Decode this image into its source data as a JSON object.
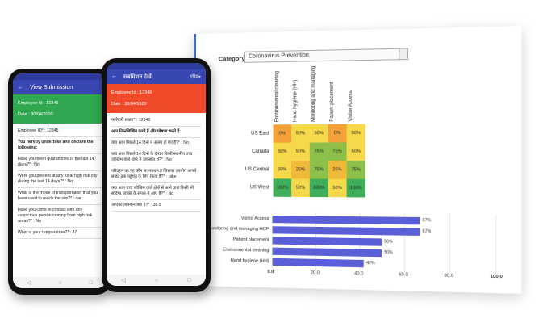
{
  "dashboard": {
    "category_label": "Category",
    "category_value": "Coronavirus Prevention",
    "heatmap": {
      "columns": [
        "Environmental cleaning",
        "Hand hygiene (HH)",
        "Monitoring and managing",
        "Patient placement",
        "Visitor Access"
      ],
      "rows": [
        {
          "label": "US East",
          "values": [
            "0%",
            "50%",
            "50%",
            "0%",
            "50%"
          ],
          "colors": [
            "#f4a13a",
            "#f5d94a",
            "#f5d94a",
            "#f4a13a",
            "#f5d94a"
          ]
        },
        {
          "label": "Canada",
          "values": [
            "50%",
            "50%",
            "75%",
            "75%",
            "50%"
          ],
          "colors": [
            "#f5d94a",
            "#f5d94a",
            "#8cc04a",
            "#8cc04a",
            "#f5d94a"
          ]
        },
        {
          "label": "US Central",
          "values": [
            "50%",
            "25%",
            "75%",
            "25%",
            "75%"
          ],
          "colors": [
            "#f5d94a",
            "#f0b93a",
            "#8cc04a",
            "#f0b93a",
            "#8cc04a"
          ]
        },
        {
          "label": "US West",
          "values": [
            "100%",
            "50%",
            "100%",
            "50%",
            "100%"
          ],
          "colors": [
            "#3fae5a",
            "#f5d94a",
            "#3fae5a",
            "#f5d94a",
            "#3fae5a"
          ]
        }
      ]
    },
    "bars": {
      "items": [
        {
          "label": "Visitor Access",
          "value": 67,
          "value_label": "67%"
        },
        {
          "label": "Monitoring and managing HCP",
          "value": 67,
          "value_label": "67%"
        },
        {
          "label": "Patient placement",
          "value": 50,
          "value_label": "50%"
        },
        {
          "label": "Environmental cleaning",
          "value": 50,
          "value_label": "50%"
        },
        {
          "label": "Hand hygiene (HH)",
          "value": 42,
          "value_label": "42%"
        }
      ],
      "ticks": [
        "0.0",
        "20.0",
        "40.0",
        "60.0",
        "80.0",
        "100.0"
      ],
      "max": 100
    }
  },
  "phone_en": {
    "title": "View Submission",
    "back_icon": "arrow-left-icon",
    "banner_color": "#2fa84f",
    "employee_id": "Employee Id : 12345",
    "date": "Date : 30/04/2020",
    "items": [
      {
        "text": "Employee ID* : 12345",
        "bold": false
      },
      {
        "text": "You hereby undertake and declare the following:",
        "bold": true
      },
      {
        "text": "Have you been quarantined in the last 14 days?* : No",
        "bold": false
      },
      {
        "text": "Were you present at any local high risk city during the last 14 days?* : No",
        "bold": false
      },
      {
        "text": "What is the mode of transportation that you have used to reach the site?* : car",
        "bold": false
      },
      {
        "text": "Have you come in contact with any suspicious person coming from high risk areas?* : No",
        "bold": false
      },
      {
        "text": "What is your temperature?* : 37",
        "bold": false
      }
    ]
  },
  "phone_hi": {
    "title": "सबमिशन देखें",
    "action": "एडिट ▸",
    "banner_color": "#f04a2a",
    "employee_id": "Employee Id : 12345",
    "date": "Date : 30/04/2020",
    "items": [
      {
        "text": "कर्मचारी संख्या* : 12345",
        "bold": false
      },
      {
        "text": "आप निम्नलिखित करते हैं और घोषणा करते हैं:",
        "bold": true
      },
      {
        "text": "क्या आप पिछले 14 दिनों में अलग हो गए हैं?* : No",
        "bold": false
      },
      {
        "text": "क्या आप पिछले 14 दिनों के दौरान किसी स्थानीय उच्च जोखिम वाले शहर में उपस्थित थे?* : No",
        "bold": false
      },
      {
        "text": "परिवहन का वह कौन सा माध्यम है जिसका उपयोग आपने साइट तक पहुंचने के लिए किया है?* : bike",
        "bold": false
      },
      {
        "text": "क्या आप उच्च जोखिम वाले क्षेत्रों से आने वाले किसी भी संदिग्ध व्यक्ति के संपर्क में आए हैं?* : No",
        "bold": false
      },
      {
        "text": "आपका तापमान क्या है?* : 36.5",
        "bold": false
      }
    ]
  },
  "nav_icons": [
    "back-triangle-icon",
    "home-circle-icon",
    "recents-square-icon"
  ]
}
